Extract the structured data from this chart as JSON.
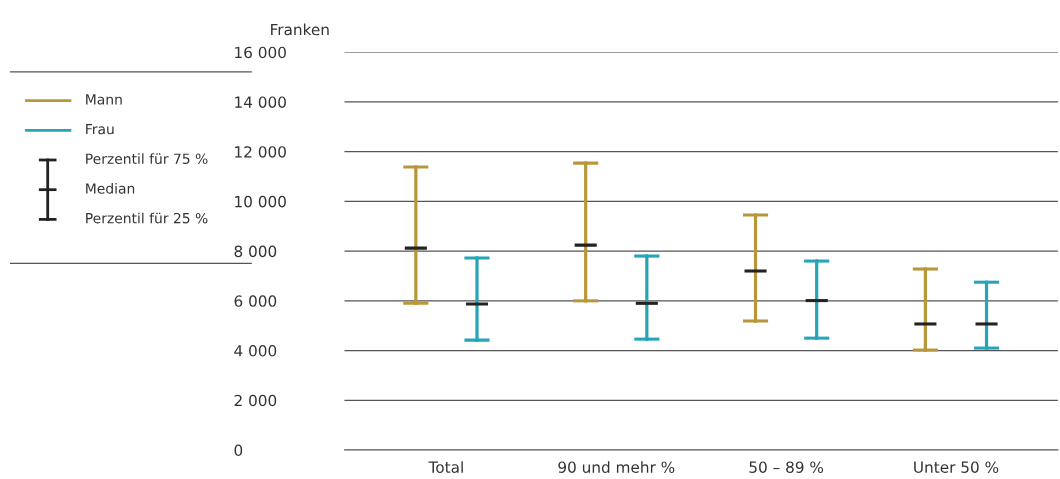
{
  "chart_data": {
    "type": "box",
    "ylabel": "Franken",
    "categories": [
      "Total",
      "90 und mehr %",
      "50 – 89 %",
      "Unter 50 %"
    ],
    "series": [
      {
        "name": "Mann",
        "color": "#b8973a",
        "boxes": [
          {
            "low": 5900,
            "q1": 5900,
            "median": 8120,
            "q3": 11380,
            "high": 11380
          },
          {
            "low": 6000,
            "q1": 6000,
            "median": 8240,
            "q3": 11540,
            "high": 11540
          },
          {
            "low": 5190,
            "q1": 5190,
            "median": 7200,
            "q3": 9450,
            "high": 9450
          },
          {
            "low": 4020,
            "q1": 4020,
            "median": 5070,
            "q3": 7280,
            "high": 7280
          }
        ]
      },
      {
        "name": "Frau",
        "color": "#26a5b8",
        "boxes": [
          {
            "low": 4420,
            "q1": 4420,
            "median": 5870,
            "q3": 7720,
            "high": 7720
          },
          {
            "low": 4460,
            "q1": 4460,
            "median": 5900,
            "q3": 7800,
            "high": 7800
          },
          {
            "low": 4500,
            "q1": 4500,
            "median": 6010,
            "q3": 7600,
            "high": 7600
          },
          {
            "low": 4100,
            "q1": 4100,
            "median": 5070,
            "q3": 6750,
            "high": 6750
          }
        ]
      }
    ],
    "ylim": [
      0,
      16000
    ],
    "yticks": [
      0,
      {
        "value": 2000,
        "label": "2 000"
      },
      {
        "value": 4000,
        "label": "4 000"
      },
      {
        "value": 6000,
        "label": "6 000"
      },
      {
        "value": 8000,
        "label": "8 000"
      },
      {
        "value": 10000,
        "label": "10 000"
      },
      {
        "value": 12000,
        "label": "12 000"
      },
      {
        "value": 14000,
        "label": "14 000"
      },
      {
        "value": 16000,
        "label": "16 000"
      }
    ],
    "grid": "y",
    "legend": "left",
    "annotations": [
      "Perzentil für 75 %",
      "Median",
      "Perzentil für 25 %"
    ]
  }
}
